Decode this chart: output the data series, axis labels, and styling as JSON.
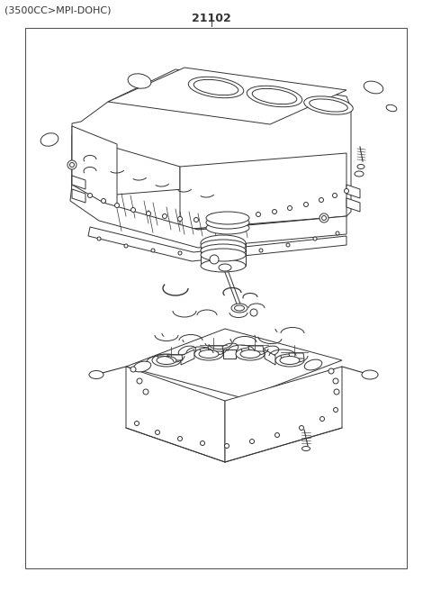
{
  "title_text": "21102",
  "subtitle_text": "(3500CC>MPI-DOHC)",
  "bg_color": "#ffffff",
  "border_color": "#333333",
  "line_color": "#333333",
  "title_fontsize": 9,
  "subtitle_fontsize": 8,
  "lw": 0.7
}
